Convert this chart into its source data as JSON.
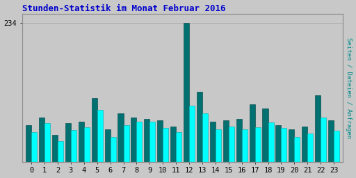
{
  "title": "Stunden-Statistik im Monat Februar 2016",
  "ylabel_right": "Seiten / Dateien / Anfragen",
  "hours": [
    0,
    1,
    2,
    3,
    4,
    5,
    6,
    7,
    8,
    9,
    10,
    11,
    12,
    13,
    14,
    15,
    16,
    17,
    18,
    19,
    20,
    21,
    22,
    23
  ],
  "series1_values": [
    62,
    75,
    45,
    65,
    68,
    108,
    55,
    82,
    75,
    73,
    70,
    60,
    234,
    118,
    68,
    70,
    73,
    97,
    90,
    62,
    55,
    60,
    112,
    70
  ],
  "series2_values": [
    50,
    65,
    35,
    54,
    58,
    88,
    42,
    62,
    68,
    68,
    57,
    50,
    95,
    82,
    55,
    60,
    55,
    58,
    67,
    57,
    42,
    48,
    75,
    52
  ],
  "color1": "#007070",
  "color2": "#00ffff",
  "color1_edge": "#004040",
  "color2_edge": "#00aaaa",
  "title_color": "#0000cc",
  "ylabel_right_color": "#008888",
  "bg_color": "#c8c8c8",
  "plot_bg_color": "#c8c8c8",
  "ylim_max": 250,
  "ytick_val": 234,
  "bar_width": 0.85,
  "title_fontsize": 9,
  "tick_fontsize": 7.5
}
